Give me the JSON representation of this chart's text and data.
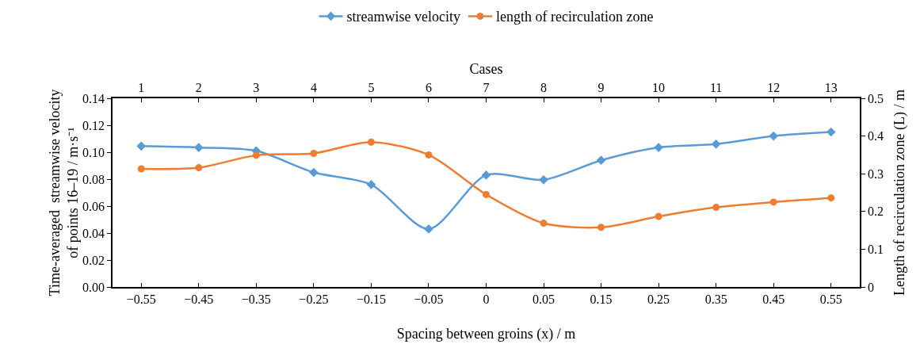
{
  "chart_data": {
    "type": "line",
    "xlabel": "Spacing between groins (x) / m",
    "ylabel": "Time-averaged  streamwise velocity\nof points 16–19 / m·s⁻¹",
    "y2label": "Length of recirculation zone (L) / m",
    "x2label": "Cases",
    "categories": [
      "−0.55",
      "−0.45",
      "−0.35",
      "−0.25",
      "−0.15",
      "−0.05",
      "0",
      "0.05",
      "0.15",
      "0.25",
      "0.35",
      "0.45",
      "0.55"
    ],
    "series": [
      {
        "name": "streamwise velocity",
        "color": "#5b9bd5",
        "marker": "diamond",
        "values": [
          0.1045,
          0.1035,
          0.101,
          0.085,
          0.076,
          0.043,
          0.083,
          0.0795,
          0.094,
          0.1035,
          0.106,
          0.112,
          0.115
        ]
      },
      {
        "name": "length of recirculation zone",
        "color": "#ed7d31",
        "marker": "circle",
        "axis": "y2",
        "values": [
          0.313,
          0.316,
          0.349,
          0.354,
          0.384,
          0.35,
          0.245,
          0.169,
          0.158,
          0.187,
          0.211,
          0.225,
          0.236
        ]
      }
    ],
    "ylim": [
      0,
      0.14
    ],
    "yticks": [
      {
        "value": 0,
        "label": "0.00"
      },
      {
        "value": 0.02,
        "label": "0.02"
      },
      {
        "value": 0.04,
        "label": "0.04"
      },
      {
        "value": 0.06,
        "label": "0.06"
      },
      {
        "value": 0.08,
        "label": "0.08"
      },
      {
        "value": 0.1,
        "label": "0.10"
      },
      {
        "value": 0.12,
        "label": "0.12"
      },
      {
        "value": 0.14,
        "label": "0.14"
      }
    ],
    "y2lim": [
      0,
      0.5
    ],
    "y2ticks": [
      0,
      0.1,
      0.2,
      0.3,
      0.4,
      0.5
    ],
    "x2lim": [
      0.5,
      13.5
    ],
    "x2ticks": [
      1,
      2,
      3,
      4,
      5,
      6,
      7,
      8,
      9,
      10,
      11,
      12,
      13
    ],
    "legend": "top",
    "grid": false,
    "line_style": "solid"
  }
}
